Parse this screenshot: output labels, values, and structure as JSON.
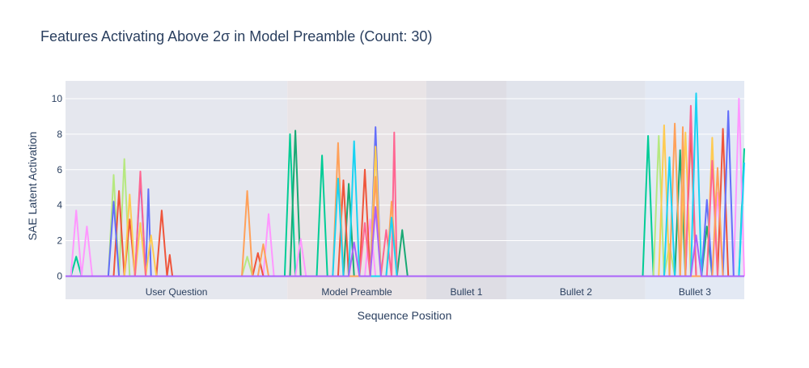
{
  "chart_data": {
    "type": "line",
    "title": "Features Activating Above 2σ in Model Preamble (Count: 30)",
    "xlabel": "Sequence Position",
    "ylabel": "SAE Latent Activation",
    "xlim": [
      0,
      127
    ],
    "ylim": [
      -1.3,
      11
    ],
    "yticks": [
      0,
      2,
      4,
      6,
      8,
      10
    ],
    "regions": [
      {
        "label": "User Question",
        "start": 0,
        "end": 41.5,
        "color": "#e5e7ee"
      },
      {
        "label": "Model Preamble",
        "start": 41.5,
        "end": 67.5,
        "color": "#e9e4e6"
      },
      {
        "label": "Bullet 1",
        "start": 67.5,
        "end": 82.5,
        "color": "#dedde4"
      },
      {
        "label": "Bullet 2",
        "start": 82.5,
        "end": 108.5,
        "color": "#e1e4ec"
      },
      {
        "label": "Bullet 3",
        "start": 108.5,
        "end": 127,
        "color": "#e3e9f4"
      }
    ],
    "series": [
      {
        "color": "#00cc96",
        "points": [
          [
            1,
            0
          ],
          [
            2,
            1.1
          ],
          [
            3,
            0
          ],
          [
            41,
            0
          ],
          [
            42,
            8.0
          ],
          [
            43,
            0
          ],
          [
            47,
            0
          ],
          [
            48,
            6.8
          ],
          [
            49,
            0
          ],
          [
            108,
            0
          ],
          [
            109,
            7.9
          ],
          [
            110,
            0
          ],
          [
            126,
            0
          ],
          [
            127,
            7.2
          ]
        ]
      },
      {
        "color": "#19a974",
        "points": [
          [
            42,
            0
          ],
          [
            43,
            8.2
          ],
          [
            44,
            0
          ],
          [
            52,
            0
          ],
          [
            53,
            5.2
          ],
          [
            54,
            0
          ],
          [
            62,
            0
          ],
          [
            63,
            2.6
          ],
          [
            64,
            0
          ],
          [
            114,
            0
          ],
          [
            115,
            7.1
          ],
          [
            116,
            0
          ],
          [
            119,
            0
          ],
          [
            120,
            2.8
          ],
          [
            121,
            0
          ]
        ]
      },
      {
        "color": "#ff97ff",
        "points": [
          [
            1,
            0
          ],
          [
            2,
            3.7
          ],
          [
            3,
            0
          ],
          [
            4,
            2.8
          ],
          [
            5,
            0
          ],
          [
            37,
            0
          ],
          [
            38,
            3.5
          ],
          [
            39,
            0
          ],
          [
            43,
            0
          ],
          [
            44,
            2.1
          ],
          [
            45,
            0
          ],
          [
            56,
            0
          ],
          [
            57,
            3.2
          ],
          [
            58,
            0
          ],
          [
            121,
            0
          ],
          [
            122,
            4.7
          ],
          [
            123,
            0
          ],
          [
            125,
            0
          ],
          [
            126,
            10.0
          ],
          [
            127,
            0
          ]
        ]
      },
      {
        "color": "#b6e880",
        "points": [
          [
            8,
            0
          ],
          [
            9,
            5.7
          ],
          [
            10,
            0
          ],
          [
            11,
            6.6
          ],
          [
            12,
            0
          ],
          [
            33,
            0
          ],
          [
            34,
            1.1
          ],
          [
            35,
            0
          ],
          [
            110,
            0
          ],
          [
            111,
            7.9
          ],
          [
            112,
            0
          ],
          [
            113,
            1.8
          ],
          [
            114,
            0
          ]
        ]
      },
      {
        "color": "#ef553b",
        "points": [
          [
            9,
            0
          ],
          [
            10,
            4.8
          ],
          [
            11,
            0
          ],
          [
            12,
            3.2
          ],
          [
            13,
            0
          ],
          [
            17,
            0
          ],
          [
            18,
            3.7
          ],
          [
            19,
            0
          ],
          [
            19.5,
            1.2
          ],
          [
            20,
            0
          ],
          [
            35,
            0
          ],
          [
            36,
            1.3
          ],
          [
            37,
            0
          ],
          [
            51,
            0
          ],
          [
            52,
            5.4
          ],
          [
            53,
            0
          ],
          [
            55,
            0
          ],
          [
            56,
            6.0
          ],
          [
            57,
            0
          ],
          [
            116,
            0
          ],
          [
            117,
            8.3
          ],
          [
            118,
            0
          ],
          [
            122,
            0
          ],
          [
            123,
            8.3
          ],
          [
            124,
            0
          ]
        ]
      },
      {
        "color": "#636efa",
        "points": [
          [
            8,
            0
          ],
          [
            9,
            4.2
          ],
          [
            10,
            0
          ],
          [
            13,
            0
          ],
          [
            14,
            5.6
          ],
          [
            15,
            0
          ],
          [
            15.5,
            4.9
          ],
          [
            16,
            0
          ],
          [
            57,
            0
          ],
          [
            58,
            8.4
          ],
          [
            59,
            0
          ],
          [
            119,
            0
          ],
          [
            120,
            4.3
          ],
          [
            121,
            0
          ],
          [
            123,
            0
          ],
          [
            124,
            9.3
          ],
          [
            125,
            0
          ]
        ]
      },
      {
        "color": "#fecb52",
        "points": [
          [
            11,
            0
          ],
          [
            12,
            4.6
          ],
          [
            13,
            0
          ],
          [
            14,
            3.0
          ],
          [
            15,
            0
          ],
          [
            16,
            2.3
          ],
          [
            17,
            0
          ],
          [
            57,
            0
          ],
          [
            58,
            7.3
          ],
          [
            59,
            0
          ],
          [
            111,
            0
          ],
          [
            112,
            8.5
          ],
          [
            113,
            0
          ],
          [
            115,
            0
          ],
          [
            116,
            8.1
          ],
          [
            117,
            0
          ],
          [
            120,
            0
          ],
          [
            121,
            7.8
          ],
          [
            122,
            0
          ]
        ]
      },
      {
        "color": "#ff6692",
        "points": [
          [
            13,
            0
          ],
          [
            14,
            5.9
          ],
          [
            15,
            0
          ],
          [
            55,
            0
          ],
          [
            56,
            3.0
          ],
          [
            57,
            0
          ],
          [
            59,
            0
          ],
          [
            60,
            2.6
          ],
          [
            61,
            0
          ],
          [
            61.5,
            8.1
          ],
          [
            62,
            0
          ],
          [
            116,
            0
          ],
          [
            117,
            9.6
          ],
          [
            118,
            0
          ],
          [
            120,
            0
          ],
          [
            121,
            6.5
          ],
          [
            122,
            0
          ]
        ]
      },
      {
        "color": "#ffa15a",
        "points": [
          [
            33,
            0
          ],
          [
            34,
            4.8
          ],
          [
            35,
            0
          ],
          [
            36,
            0
          ],
          [
            37,
            1.8
          ],
          [
            38,
            0
          ],
          [
            50,
            0
          ],
          [
            51,
            7.5
          ],
          [
            52,
            0
          ],
          [
            57,
            0
          ],
          [
            58,
            5.6
          ],
          [
            59,
            0
          ],
          [
            60,
            0
          ],
          [
            61,
            4.2
          ],
          [
            62,
            0
          ],
          [
            113,
            0
          ],
          [
            114,
            8.6
          ],
          [
            115,
            0
          ],
          [
            115.5,
            8.4
          ],
          [
            116,
            0
          ],
          [
            121,
            0
          ],
          [
            122,
            6.1
          ],
          [
            123,
            0
          ]
        ]
      },
      {
        "color": "#19d3f3",
        "points": [
          [
            50,
            0
          ],
          [
            51,
            5.5
          ],
          [
            52,
            0
          ],
          [
            53,
            0
          ],
          [
            54,
            7.6
          ],
          [
            55,
            0
          ],
          [
            60,
            0
          ],
          [
            61,
            3.3
          ],
          [
            62,
            0
          ],
          [
            112,
            0
          ],
          [
            113,
            6.7
          ],
          [
            114,
            0
          ],
          [
            117,
            0
          ],
          [
            118,
            10.3
          ],
          [
            119,
            0
          ],
          [
            126,
            0
          ],
          [
            127,
            6.4
          ]
        ]
      },
      {
        "color": "#ab63fa",
        "points": [
          [
            53,
            0
          ],
          [
            54,
            1.9
          ],
          [
            55,
            0
          ],
          [
            57,
            0
          ],
          [
            58,
            3.9
          ],
          [
            59,
            0
          ],
          [
            117,
            0
          ],
          [
            118,
            2.3
          ],
          [
            119,
            0
          ]
        ]
      }
    ]
  }
}
